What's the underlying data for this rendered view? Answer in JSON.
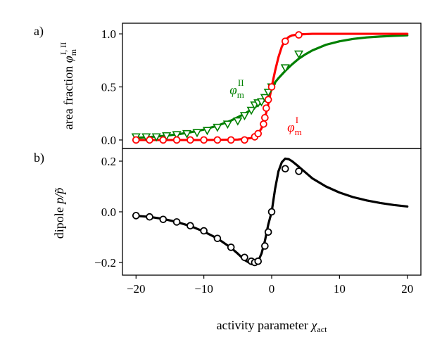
{
  "colors": {
    "phase_I": "#ff0000",
    "phase_II": "#008000",
    "dipole": "#000000",
    "axes": "#000000"
  },
  "chart_data": [
    {
      "type": "line",
      "panel_label": "a)",
      "ylabel_text": "area fraction",
      "ylabel_symbol": "φ",
      "ylabel_sub": "m",
      "ylabel_sup": "I, II",
      "xlim": [
        -22,
        22
      ],
      "ylim": [
        -0.08,
        1.1
      ],
      "yticks": [
        0.0,
        0.5,
        1.0
      ],
      "ytick_labels": [
        "0.0",
        "0.5",
        "1.0"
      ],
      "annotations": [
        {
          "symbol": "φ",
          "sub": "m",
          "sup": "II",
          "series": "phase II",
          "x": -6.2,
          "y": 0.43
        },
        {
          "symbol": "φ",
          "sub": "m",
          "sup": "I",
          "series": "phase I",
          "x": 2.3,
          "y": 0.08
        }
      ],
      "series": [
        {
          "name": "phase II",
          "kind": "theory",
          "x": [
            -20,
            -18,
            -16,
            -14,
            -12,
            -10,
            -8,
            -6,
            -4,
            -3,
            -2,
            -1.5,
            -1,
            -0.5,
            0,
            0.5,
            1,
            2,
            3,
            4,
            5,
            6,
            8,
            10,
            12,
            14,
            16,
            18,
            20
          ],
          "y": [
            0.02,
            0.028,
            0.038,
            0.052,
            0.072,
            0.098,
            0.135,
            0.183,
            0.246,
            0.286,
            0.33,
            0.353,
            0.377,
            0.401,
            0.5,
            0.542,
            0.582,
            0.651,
            0.712,
            0.766,
            0.808,
            0.844,
            0.897,
            0.93,
            0.952,
            0.966,
            0.975,
            0.981,
            0.986
          ]
        },
        {
          "name": "phase II",
          "kind": "simulation",
          "marker": "triangle-down",
          "x": [
            -20,
            -18.5,
            -17,
            -15.5,
            -14,
            -12.5,
            -11,
            -9.5,
            -8,
            -6.5,
            -5,
            -4,
            -3,
            -2.5,
            -2,
            -1.5,
            -1,
            -0.5,
            0,
            2,
            4
          ],
          "y": [
            0.03,
            0.03,
            0.03,
            0.04,
            0.05,
            0.06,
            0.07,
            0.09,
            0.12,
            0.15,
            0.18,
            0.23,
            0.28,
            0.33,
            0.35,
            0.36,
            0.4,
            0.45,
            0.5,
            0.68,
            0.81
          ]
        },
        {
          "name": "phase I",
          "kind": "theory",
          "x": [
            -20,
            -10,
            -5,
            -3,
            -2.5,
            -2,
            -1.5,
            -1.2,
            -1,
            -0.8,
            -0.5,
            -0.3,
            0,
            0.5,
            1,
            1.5,
            2,
            2.5,
            3,
            4,
            6,
            10,
            20
          ],
          "y": [
            0.0,
            0.0,
            0.004,
            0.018,
            0.035,
            0.06,
            0.11,
            0.165,
            0.21,
            0.26,
            0.34,
            0.4,
            0.5,
            0.65,
            0.78,
            0.88,
            0.94,
            0.97,
            0.985,
            0.995,
            1.0,
            1.0,
            1.0
          ]
        },
        {
          "name": "phase I",
          "kind": "simulation",
          "marker": "circle",
          "x": [
            -20,
            -18,
            -16,
            -14,
            -12,
            -10,
            -8,
            -6,
            -4,
            -2.5,
            -2,
            -1.2,
            -1,
            -0.8,
            -0.5,
            0,
            2,
            4
          ],
          "y": [
            0.0,
            0.0,
            0.0,
            0.0,
            0.0,
            0.0,
            0.0,
            0.0,
            0.0,
            0.03,
            0.06,
            0.15,
            0.21,
            0.3,
            0.38,
            0.5,
            0.93,
            0.99
          ]
        }
      ]
    },
    {
      "type": "line",
      "panel_label": "b)",
      "ylabel_text": "dipole",
      "ylabel_symbol": "p/p̃",
      "xlabel_text": "activity parameter",
      "xlabel_symbol": "χ",
      "xlabel_sub": "act",
      "xlim": [
        -22,
        22
      ],
      "ylim": [
        -0.25,
        0.25
      ],
      "xticks": [
        -20,
        -10,
        0,
        10,
        20
      ],
      "xtick_labels": [
        "−20",
        "−10",
        "0",
        "10",
        "20"
      ],
      "yticks": [
        -0.2,
        0.0,
        0.2
      ],
      "ytick_labels": [
        "−0.2",
        "0.0",
        "0.2"
      ],
      "series": [
        {
          "name": "dipole",
          "kind": "theory",
          "x": [
            -20,
            -18,
            -16,
            -14,
            -12,
            -10,
            -8,
            -6,
            -5,
            -4,
            -3,
            -2.5,
            -2,
            -1.5,
            -1,
            -0.5,
            0,
            0.5,
            1,
            1.5,
            2,
            2.5,
            3,
            4,
            5,
            6,
            8,
            10,
            12,
            14,
            16,
            18,
            20
          ],
          "y": [
            -0.016,
            -0.02,
            -0.028,
            -0.04,
            -0.056,
            -0.078,
            -0.105,
            -0.142,
            -0.165,
            -0.19,
            -0.206,
            -0.208,
            -0.195,
            -0.165,
            -0.115,
            -0.05,
            0.0,
            0.09,
            0.16,
            0.196,
            0.21,
            0.208,
            0.2,
            0.178,
            0.155,
            0.132,
            0.1,
            0.076,
            0.058,
            0.045,
            0.035,
            0.027,
            0.021
          ]
        },
        {
          "name": "dipole",
          "kind": "simulation",
          "marker": "circle",
          "x": [
            -20,
            -18,
            -16,
            -14,
            -12,
            -10,
            -8,
            -6,
            -4,
            -3,
            -2.5,
            -2,
            -1,
            -0.5,
            0,
            2,
            4
          ],
          "y": [
            -0.015,
            -0.02,
            -0.03,
            -0.04,
            -0.055,
            -0.075,
            -0.105,
            -0.14,
            -0.18,
            -0.195,
            -0.2,
            -0.195,
            -0.135,
            -0.08,
            0.0,
            0.17,
            0.16
          ]
        }
      ]
    }
  ]
}
